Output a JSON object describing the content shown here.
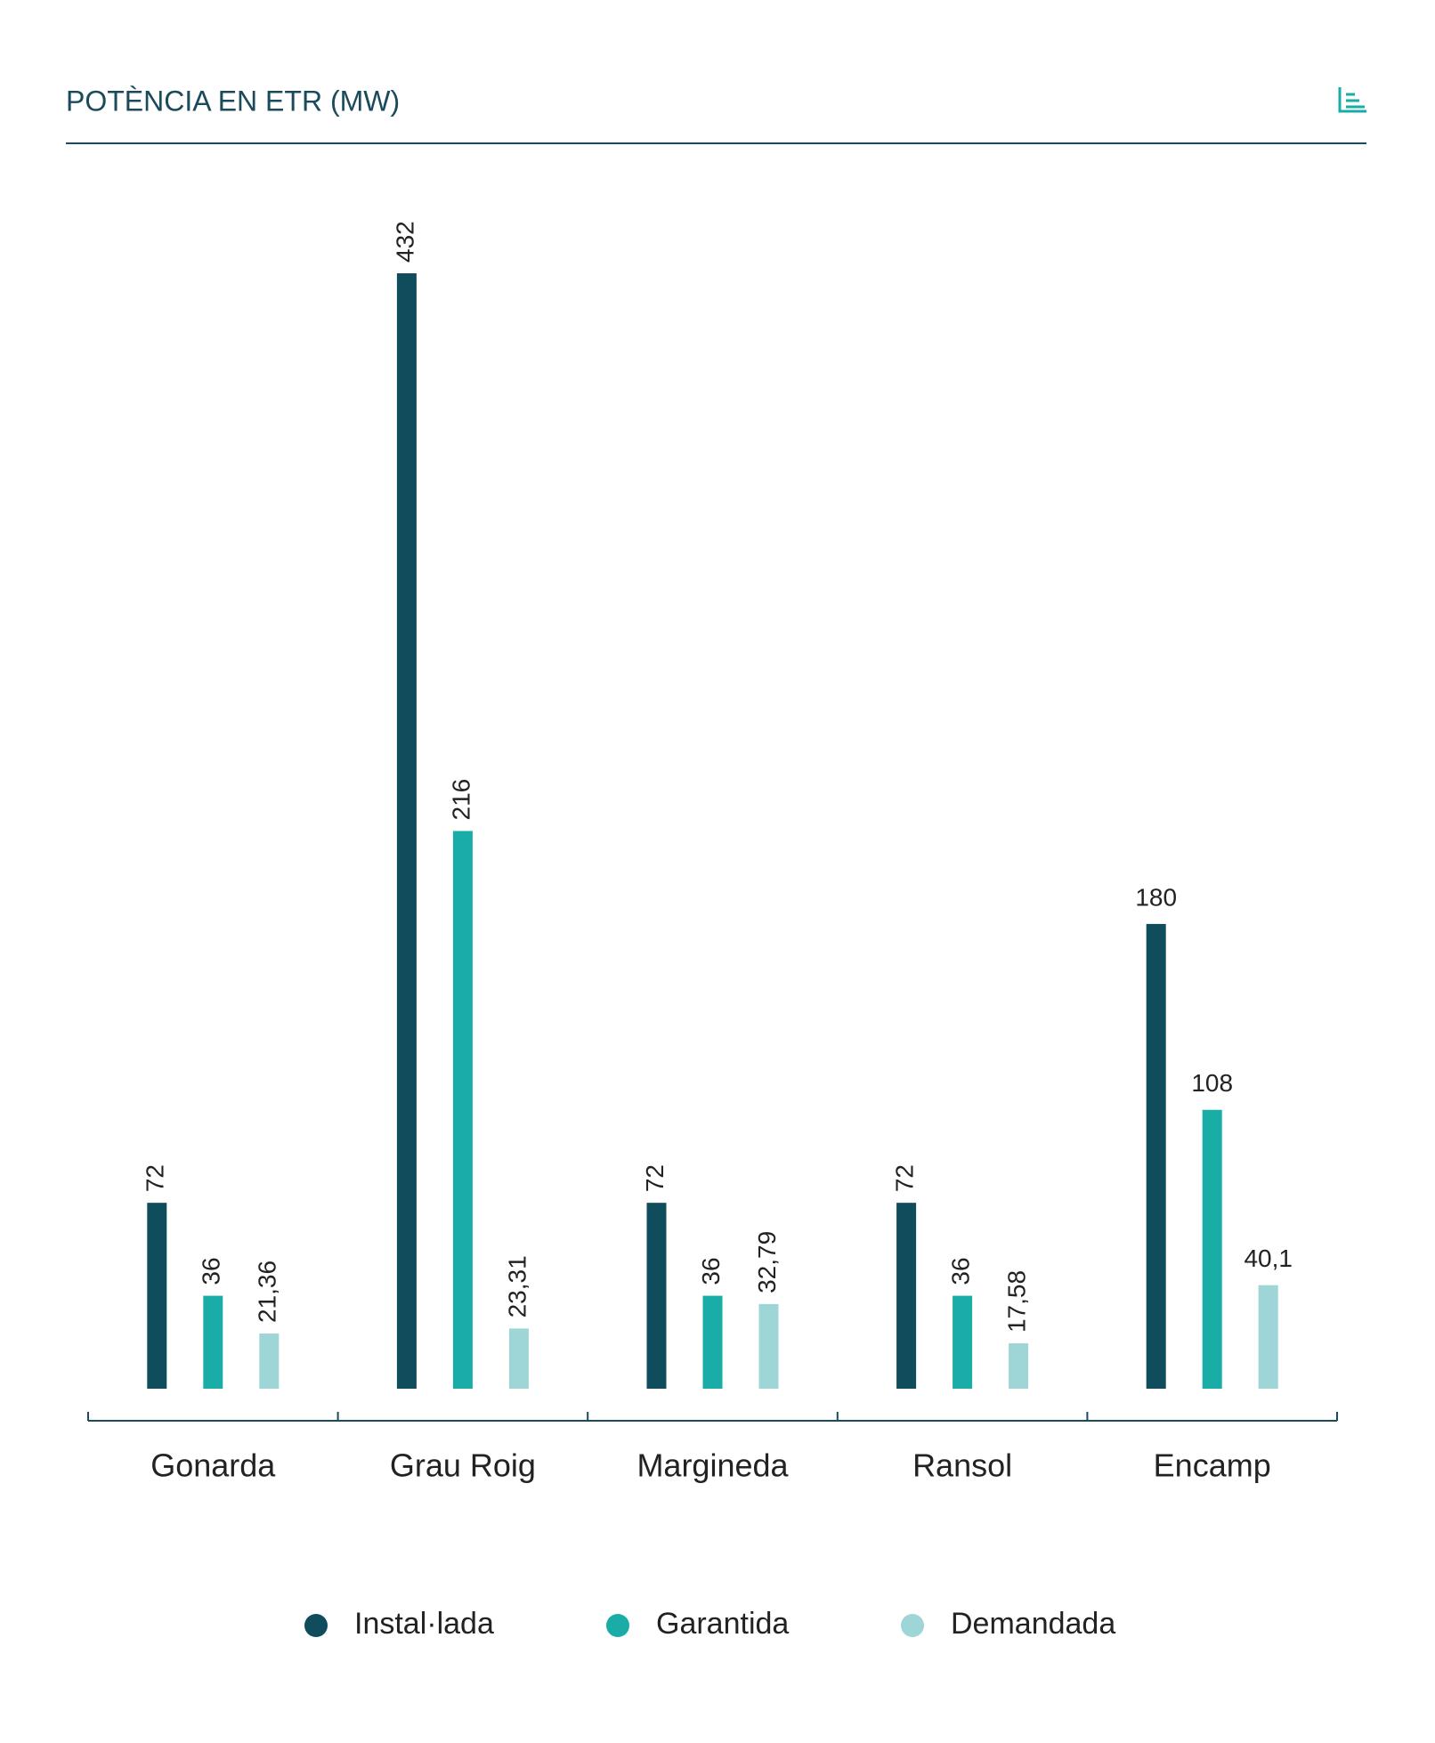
{
  "chart_data": {
    "type": "bar",
    "title": "POTÈNCIA EN ETR (MW)",
    "categories": [
      "Gonarda",
      "Grau Roig",
      "Margineda",
      "Ransol",
      "Encamp"
    ],
    "series": [
      {
        "name": "Instal·lada",
        "color": "#0f4c5c",
        "values": [
          72,
          432,
          72,
          72,
          180
        ]
      },
      {
        "name": "Garantida",
        "color": "#1aaca6",
        "values": [
          36,
          216,
          36,
          36,
          108
        ]
      },
      {
        "name": "Demandada",
        "color": "#9ed5d6",
        "values": [
          21.36,
          23.31,
          32.79,
          17.58,
          40.1
        ],
        "value_labels": [
          "21,36",
          "23,31",
          "32,79",
          "17,58",
          "40,1"
        ]
      }
    ]
  }
}
